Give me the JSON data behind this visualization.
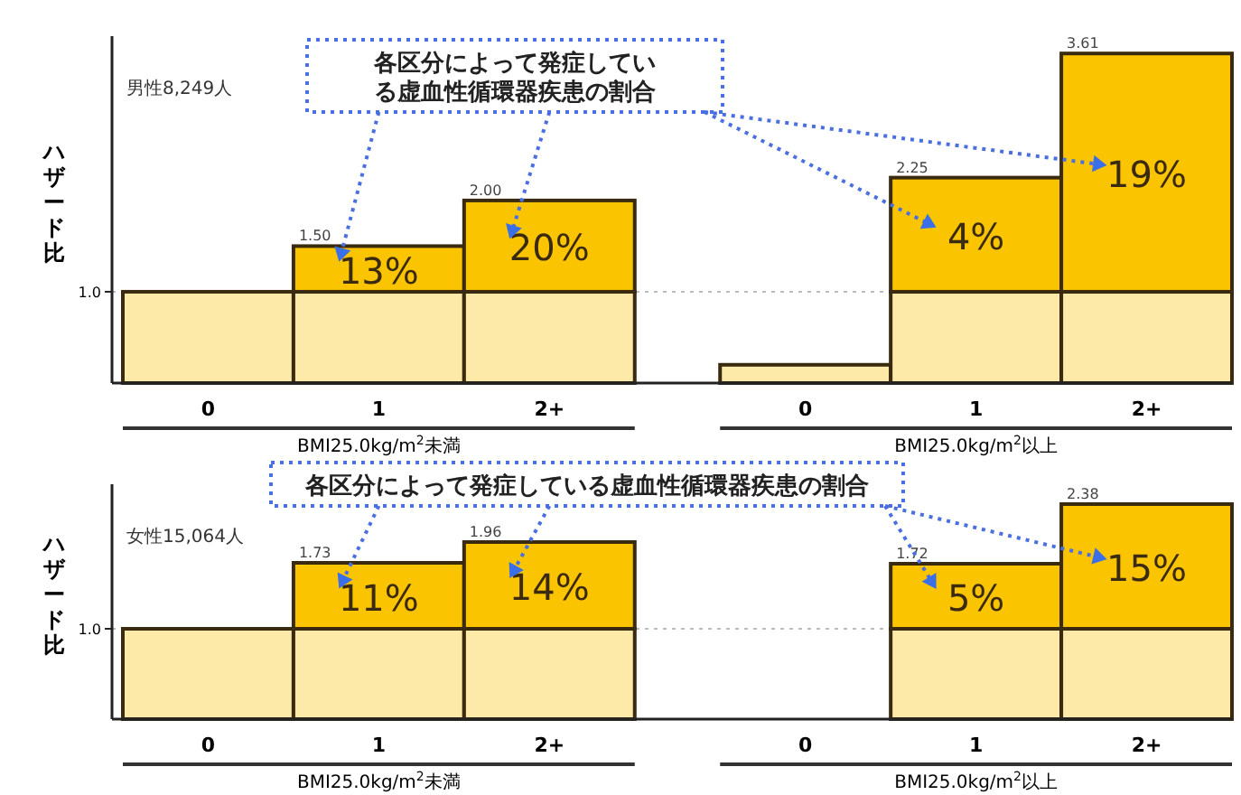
{
  "chart_data": [
    {
      "type": "bar",
      "stacked": true,
      "title": "各区分によって発症している虚血性循環器疾患の割合",
      "subtitle": "男性8,249人",
      "ylabel": "ハザード比",
      "categories": [
        "0",
        "1",
        "2+",
        "0",
        "1",
        "2+"
      ],
      "series": [
        {
          "color": "#fde9a8",
          "values": [
            1,
            1,
            1,
            0.2,
            1,
            1
          ]
        },
        {
          "color": "#fbc400",
          "values": [
            null,
            0.5,
            1.0,
            null,
            1.25,
            2.61
          ]
        }
      ],
      "totals": [
        null,
        "1.50",
        "2.00",
        null,
        "2.25",
        "3.61"
      ],
      "ylim": [
        0,
        3.8
      ],
      "yticks": [
        {
          "value": 1,
          "label": "1.0"
        }
      ],
      "ref_lines": [
        {
          "axis": "y",
          "value": 1,
          "color": "#bbbbbb",
          "line_style": "dotted"
        }
      ],
      "annotations": [
        "BMI25.0kg/m$^{2}$未満",
        "BMI25.0kg/m$^{2}$以上",
        "13%",
        "20%",
        "4%",
        "19%"
      ]
    },
    {
      "type": "bar",
      "stacked": true,
      "title": "各区分によって発症している虚血性循環器疾患の割合",
      "subtitle": "女性15,064人",
      "ylabel": "ハザード比",
      "categories": [
        "0",
        "1",
        "2+",
        "0",
        "1",
        "2+"
      ],
      "series": [
        {
          "color": "#fde9a8",
          "values": [
            1,
            1,
            1,
            null,
            1,
            1
          ]
        },
        {
          "color": "#fbc400",
          "values": [
            null,
            0.73,
            0.96,
            null,
            0.72,
            1.38
          ]
        }
      ],
      "totals": [
        null,
        "1.73",
        "1.96",
        null,
        "1.72",
        "2.38"
      ],
      "ylim": [
        0,
        2.6
      ],
      "yticks": [
        {
          "value": 1,
          "label": "1.0"
        }
      ],
      "ref_lines": [
        {
          "axis": "y",
          "value": 1,
          "color": "#bbbbbb",
          "line_style": "dotted"
        }
      ],
      "annotations": [
        "BMI25.0kg/m$^{2}$未満",
        "BMI25.0kg/m$^{2}$以上",
        "11%",
        "14%",
        "5%",
        "15%"
      ]
    }
  ]
}
